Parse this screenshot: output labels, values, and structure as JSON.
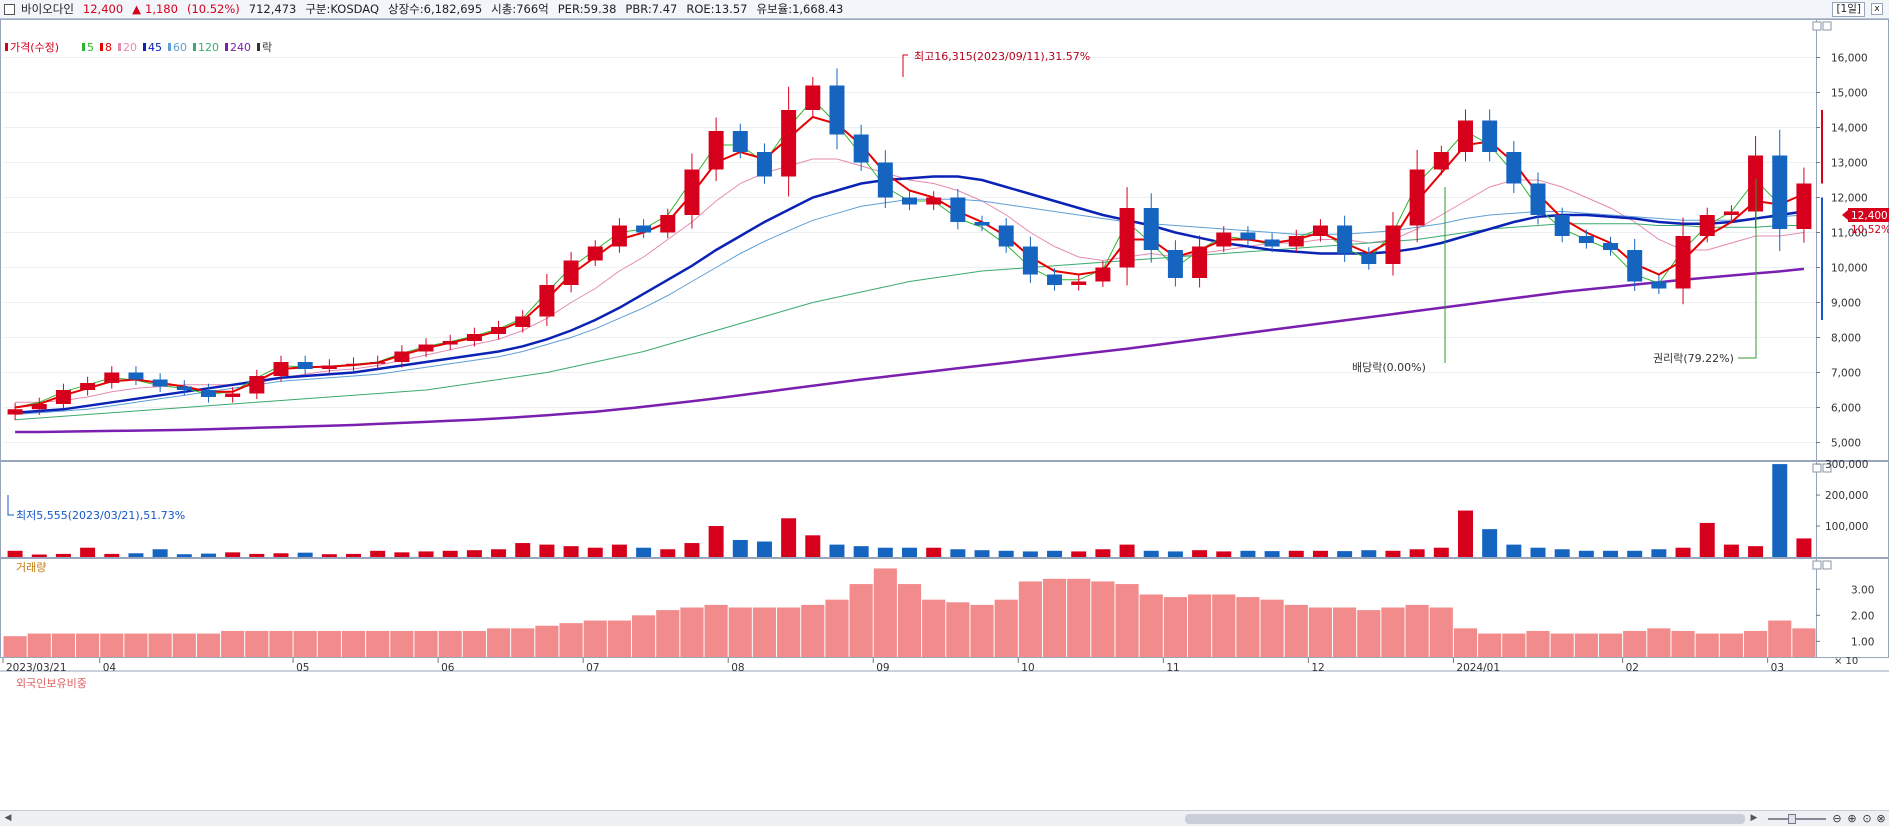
{
  "header": {
    "stock_name": "바이오다인",
    "price": "12,400",
    "change_arrow": "▲",
    "change": "1,180",
    "change_pct": "(10.52%)",
    "volume": "712,473",
    "market": "구분:KOSDAQ",
    "shares": "상장수:6,182,695",
    "market_cap": "시총:766억",
    "per": "PER:59.38",
    "pbr": "PBR:7.47",
    "roe": "ROE:13.57",
    "float_ratio": "유보율:1,668.43",
    "period_button": "[1일]",
    "close_icon": "x"
  },
  "legend": [
    {
      "text": "가격(수정)",
      "color": "#d6001c"
    },
    {
      "text": "5",
      "color": "#2fb32f"
    },
    {
      "text": "8",
      "color": "#e60000"
    },
    {
      "text": "20",
      "color": "#e58ab2"
    },
    {
      "text": "45",
      "color": "#0a22b5"
    },
    {
      "text": "60",
      "color": "#5e9fd6"
    },
    {
      "text": "120",
      "color": "#3aaa6e"
    },
    {
      "text": "240",
      "color": "#7a1fb0"
    },
    {
      "text": "락",
      "color": "#333333"
    }
  ],
  "colors": {
    "up": "#d6001c",
    "down": "#1565c0",
    "ma5": "#2fb32f",
    "ma8": "#e60000",
    "ma20": "#e58ab2",
    "ma45": "#0a22b5",
    "ma60": "#5e9fd6",
    "ma120": "#3aaa6e",
    "ma240": "#7a1fb0",
    "foreign_bar": "#f28c8c"
  },
  "panes": {
    "volume_title": "거래량",
    "foreign_title": "외국인보유비중",
    "volume_unit": "× 10"
  },
  "annotations": {
    "high": "최고16,315(2023/09/11),31.57%",
    "low": "최저5,555(2023/03/21),51.73%",
    "dividend": "배당락(0.00%)",
    "rights": "권리락(79.22%)",
    "last_price": "12,400",
    "last_pct": "10.52%"
  },
  "chart_data": [
    {
      "type": "candlestick",
      "title": "가격(수정)",
      "x_start": "2023/03/21",
      "x_end": "2024/03",
      "x_labels": [
        "2023/03/21",
        "04",
        "05",
        "06",
        "07",
        "08",
        "09",
        "10",
        "11",
        "12",
        "2024/01",
        "02",
        "03"
      ],
      "y_ticks": [
        "5,000",
        "6,000",
        "7,000",
        "8,000",
        "9,000",
        "10,000",
        "11,000",
        "12,000",
        "13,000",
        "14,000",
        "15,000",
        "16,000"
      ],
      "ylim": [
        4500,
        17100
      ],
      "series": [
        {
          "name": "가격(수정) close",
          "values": [
            5950,
            6100,
            6500,
            6700,
            7000,
            6800,
            6600,
            6500,
            6300,
            6400,
            6900,
            7300,
            7100,
            7200,
            7250,
            7300,
            7600,
            7800,
            7900,
            8100,
            8300,
            8600,
            9500,
            10200,
            10600,
            11200,
            11000,
            11500,
            12800,
            13900,
            13300,
            12600,
            14500,
            15200,
            13800,
            13000,
            12000,
            11800,
            12000,
            11300,
            11200,
            10600,
            9800,
            9500,
            9600,
            10000,
            11700,
            10500,
            9700,
            10600,
            11000,
            10800,
            10600,
            10900,
            11200,
            10400,
            10100,
            11200,
            12800,
            13300,
            14200,
            13300,
            12400,
            11500,
            10900,
            10700,
            10500,
            9600,
            9400,
            10900,
            11500,
            11600,
            13200,
            11100,
            12400
          ]
        },
        {
          "name": "5",
          "values": [
            6000,
            6150,
            6450,
            6650,
            6850,
            6780,
            6620,
            6550,
            6380,
            6450,
            6850,
            7200,
            7150,
            7180,
            7230,
            7300,
            7550,
            7750,
            7880,
            8050,
            8250,
            8550,
            9300,
            10000,
            10500,
            11000,
            11100,
            11500,
            12500,
            13500,
            13500,
            13000,
            14000,
            14800,
            14100,
            13200,
            12300,
            11900,
            11900,
            11400,
            11150,
            10650,
            10000,
            9650,
            9650,
            9950,
            11300,
            10700,
            10000,
            10500,
            10900,
            10800,
            10650,
            10850,
            11100,
            10550,
            10250,
            11000,
            12400,
            13100,
            13900,
            13500,
            12700,
            11700,
            11100,
            10800,
            10500,
            9800,
            9550,
            10500,
            11200,
            11600,
            12500,
            11800,
            12100
          ]
        },
        {
          "name": "8",
          "values": [
            6000,
            6100,
            6350,
            6550,
            6750,
            6800,
            6700,
            6600,
            6450,
            6450,
            6750,
            7100,
            7150,
            7170,
            7210,
            7280,
            7500,
            7700,
            7850,
            8000,
            8200,
            8480,
            9100,
            9800,
            10300,
            10800,
            11000,
            11300,
            12100,
            13000,
            13300,
            13100,
            13700,
            14300,
            14100,
            13500,
            12700,
            12200,
            12000,
            11600,
            11300,
            10900,
            10300,
            9900,
            9800,
            9900,
            10800,
            10800,
            10300,
            10500,
            10800,
            10800,
            10700,
            10800,
            11000,
            10700,
            10400,
            10800,
            11900,
            12700,
            13500,
            13600,
            13000,
            12100,
            11400,
            11000,
            10700,
            10100,
            9800,
            10200,
            10900,
            11300,
            11900,
            11800,
            12100
          ]
        },
        {
          "name": "20",
          "values": [
            6150,
            6150,
            6200,
            6300,
            6450,
            6550,
            6600,
            6650,
            6650,
            6650,
            6700,
            6850,
            6950,
            7050,
            7100,
            7200,
            7350,
            7500,
            7650,
            7800,
            7950,
            8200,
            8550,
            9000,
            9400,
            9900,
            10300,
            10800,
            11300,
            11900,
            12400,
            12700,
            12900,
            13100,
            13100,
            12900,
            12700,
            12500,
            12400,
            12200,
            11900,
            11500,
            11000,
            10600,
            10300,
            10200,
            10300,
            10400,
            10300,
            10400,
            10500,
            10600,
            10700,
            10700,
            10800,
            10800,
            10700,
            10800,
            11100,
            11500,
            11900,
            12300,
            12500,
            12500,
            12300,
            12000,
            11700,
            11300,
            10800,
            10500,
            10500,
            10700,
            10900,
            10900,
            11000
          ]
        },
        {
          "name": "45",
          "values": [
            5850,
            5900,
            5950,
            6050,
            6150,
            6250,
            6350,
            6450,
            6550,
            6650,
            6750,
            6850,
            6900,
            6950,
            7000,
            7100,
            7200,
            7300,
            7400,
            7500,
            7600,
            7750,
            7950,
            8200,
            8500,
            8850,
            9250,
            9650,
            10050,
            10500,
            10900,
            11300,
            11650,
            12000,
            12200,
            12400,
            12500,
            12550,
            12600,
            12600,
            12500,
            12300,
            12100,
            11900,
            11700,
            11500,
            11350,
            11200,
            11000,
            10850,
            10700,
            10600,
            10500,
            10450,
            10400,
            10400,
            10400,
            10450,
            10550,
            10700,
            10900,
            11100,
            11300,
            11450,
            11500,
            11500,
            11450,
            11400,
            11300,
            11250,
            11250,
            11300,
            11400,
            11500,
            11600
          ]
        },
        {
          "name": "60",
          "values": [
            5800,
            5850,
            5900,
            5950,
            6050,
            6150,
            6250,
            6350,
            6450,
            6550,
            6650,
            6750,
            6800,
            6850,
            6900,
            6950,
            7050,
            7150,
            7250,
            7350,
            7450,
            7600,
            7800,
            8000,
            8250,
            8550,
            8850,
            9200,
            9600,
            10000,
            10400,
            10750,
            11050,
            11350,
            11550,
            11750,
            11850,
            11950,
            11950,
            11950,
            11900,
            11800,
            11700,
            11600,
            11500,
            11400,
            11300,
            11250,
            11200,
            11150,
            11100,
            11050,
            11000,
            10950,
            10950,
            10950,
            11000,
            11050,
            11150,
            11250,
            11400,
            11500,
            11550,
            11600,
            11600,
            11550,
            11500,
            11450,
            11400,
            11350,
            11350,
            11350,
            11400,
            11450,
            11500
          ]
        },
        {
          "name": "120",
          "values": [
            5650,
            5700,
            5750,
            5800,
            5850,
            5900,
            5950,
            6000,
            6050,
            6100,
            6150,
            6200,
            6250,
            6300,
            6350,
            6400,
            6450,
            6500,
            6600,
            6700,
            6800,
            6900,
            7000,
            7150,
            7300,
            7450,
            7600,
            7800,
            8000,
            8200,
            8400,
            8600,
            8800,
            9000,
            9150,
            9300,
            9450,
            9600,
            9700,
            9800,
            9900,
            9950,
            10000,
            10050,
            10100,
            10150,
            10200,
            10250,
            10300,
            10350,
            10400,
            10450,
            10500,
            10550,
            10600,
            10650,
            10700,
            10750,
            10800,
            10900,
            11000,
            11100,
            11150,
            11200,
            11250,
            11250,
            11250,
            11250,
            11200,
            11200,
            11150,
            11150,
            11150,
            11200,
            11200
          ]
        },
        {
          "name": "240",
          "values": [
            5300,
            5300,
            5310,
            5320,
            5330,
            5340,
            5350,
            5360,
            5380,
            5400,
            5420,
            5440,
            5460,
            5480,
            5500,
            5530,
            5560,
            5590,
            5620,
            5650,
            5690,
            5730,
            5780,
            5830,
            5880,
            5950,
            6020,
            6100,
            6180,
            6260,
            6350,
            6440,
            6530,
            6620,
            6710,
            6800,
            6880,
            6960,
            7040,
            7120,
            7200,
            7280,
            7360,
            7440,
            7520,
            7600,
            7680,
            7770,
            7860,
            7950,
            8040,
            8130,
            8220,
            8310,
            8400,
            8490,
            8580,
            8670,
            8760,
            8850,
            8940,
            9030,
            9120,
            9210,
            9300,
            9370,
            9440,
            9510,
            9580,
            9650,
            9710,
            9770,
            9830,
            9890,
            9960
          ]
        }
      ]
    },
    {
      "type": "bar",
      "title": "거래량",
      "y_ticks": [
        "100,000",
        "200,000",
        "300,000"
      ],
      "ylim": [
        0,
        310000
      ],
      "values": [
        20000,
        8000,
        10000,
        30000,
        10000,
        12000,
        25000,
        9000,
        11000,
        15000,
        10000,
        12000,
        14000,
        9000,
        10000,
        20000,
        15000,
        18000,
        20000,
        22000,
        25000,
        45000,
        40000,
        35000,
        30000,
        40000,
        30000,
        25000,
        45000,
        100000,
        55000,
        50000,
        125000,
        70000,
        40000,
        35000,
        30000,
        30000,
        30000,
        25000,
        22000,
        20000,
        18000,
        20000,
        18000,
        25000,
        40000,
        20000,
        18000,
        22000,
        18000,
        20000,
        19000,
        20000,
        20000,
        19000,
        22000,
        20000,
        25000,
        30000,
        150000,
        90000,
        40000,
        30000,
        25000,
        20000,
        20000,
        20000,
        25000,
        30000,
        110000,
        40000,
        35000,
        300000,
        60000
      ]
    },
    {
      "type": "bar",
      "title": "외국인보유비중",
      "y_ticks": [
        "1.00",
        "2.00",
        "3.00"
      ],
      "ylim": [
        0.4,
        4.2
      ],
      "values": [
        1.2,
        1.3,
        1.3,
        1.3,
        1.3,
        1.3,
        1.3,
        1.3,
        1.3,
        1.4,
        1.4,
        1.4,
        1.4,
        1.4,
        1.4,
        1.4,
        1.4,
        1.4,
        1.4,
        1.4,
        1.5,
        1.5,
        1.6,
        1.7,
        1.8,
        1.8,
        2.0,
        2.2,
        2.3,
        2.4,
        2.3,
        2.3,
        2.3,
        2.4,
        2.6,
        3.2,
        3.8,
        3.2,
        2.6,
        2.5,
        2.4,
        2.6,
        3.3,
        3.4,
        3.4,
        3.3,
        3.2,
        2.8,
        2.7,
        2.8,
        2.8,
        2.7,
        2.6,
        2.4,
        2.3,
        2.3,
        2.2,
        2.3,
        2.4,
        2.3,
        1.5,
        1.3,
        1.3,
        1.4,
        1.3,
        1.3,
        1.3,
        1.4,
        1.5,
        1.4,
        1.3,
        1.3,
        1.4,
        1.8,
        1.5
      ]
    }
  ]
}
